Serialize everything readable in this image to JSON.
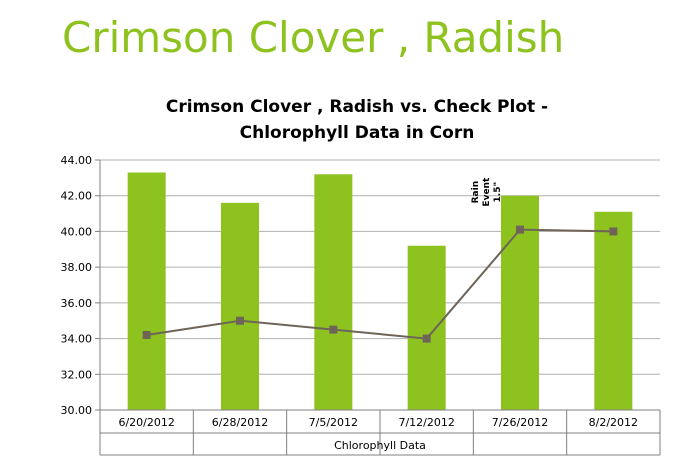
{
  "slide": {
    "title": "Crimson Clover , Radish"
  },
  "colors": {
    "title": "#8dc21f",
    "bar": "#8dc21f",
    "line": "#6e6458",
    "marker": "#6e6458",
    "grid": "#b0b0b0",
    "axis": "#808080"
  },
  "chart_data": {
    "type": "bar",
    "title_lines": [
      "Crimson Clover , Radish vs. Check Plot -",
      "Chlorophyll Data in Corn"
    ],
    "categories": [
      "6/20/2012",
      "6/28/2012",
      "7/5/2012",
      "7/12/2012",
      "7/26/2012",
      "8/2/2012"
    ],
    "xlabel": "Chlorophyll Data",
    "ylabel": "",
    "ylim": [
      30,
      44
    ],
    "yticks": [
      "30.00",
      "32.00",
      "34.00",
      "36.00",
      "38.00",
      "40.00",
      "42.00",
      "44.00"
    ],
    "grid": true,
    "series": [
      {
        "type": "bar",
        "values": [
          43.3,
          41.6,
          43.2,
          39.2,
          42.0,
          41.1
        ]
      },
      {
        "type": "line",
        "marker": "square",
        "values": [
          34.2,
          35.0,
          34.5,
          34.0,
          40.1,
          40.0
        ]
      }
    ],
    "annotation": {
      "lines": [
        "Rain",
        "Event",
        "1.5\""
      ],
      "near_category": "7/26/2012",
      "y": 42.2
    }
  }
}
